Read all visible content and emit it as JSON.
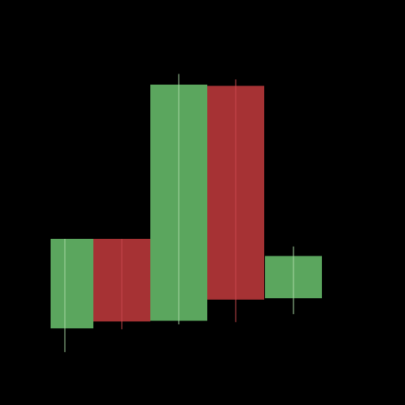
{
  "chart_data": {
    "type": "candlestick",
    "background": "#000000",
    "colors": {
      "up": "#5ba65e",
      "down": "#a63234",
      "wick_up": "#a9d8a4",
      "wick_down": "#c8474b"
    },
    "ylim": [
      0,
      100
    ],
    "grid": false,
    "candles": [
      {
        "open": 32.3,
        "close": 70.0,
        "high": 70.0,
        "low": 22.3,
        "direction": "up"
      },
      {
        "open": 70.0,
        "close": 35.2,
        "high": 70.0,
        "low": 31.9,
        "direction": "down"
      },
      {
        "open": 35.5,
        "close": 135.0,
        "high": 139.5,
        "low": 34.0,
        "direction": "up"
      },
      {
        "open": 134.5,
        "close": 44.4,
        "high": 137.2,
        "low": 34.9,
        "direction": "down"
      },
      {
        "open": 45.0,
        "close": 62.8,
        "high": 66.8,
        "low": 38.3,
        "direction": "up"
      }
    ]
  }
}
